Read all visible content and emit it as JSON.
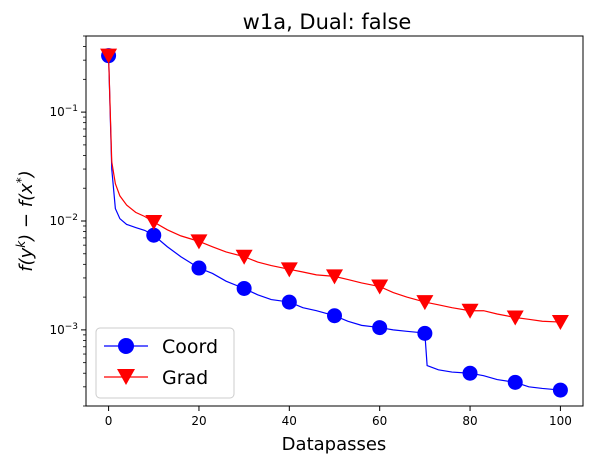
{
  "chart_data": {
    "type": "line",
    "title": "w1a, Dual: false",
    "xlabel": "Datapasses",
    "ylabel": "f(y^k) − f(x^*)",
    "xlim": [
      -5,
      105
    ],
    "ylim": [
      0.0002,
      0.5
    ],
    "yscale": "log",
    "x_ticks": [
      0,
      20,
      40,
      60,
      80,
      100
    ],
    "y_ticks": [
      {
        "value": 0.1,
        "base": "10",
        "exp": "−1"
      },
      {
        "value": 0.01,
        "base": "10",
        "exp": "−2"
      },
      {
        "value": 0.001,
        "base": "10",
        "exp": "−3"
      }
    ],
    "legend_position": "lower-left",
    "series": [
      {
        "name": "Coord",
        "color": "#0000ff",
        "marker": "circle",
        "x": [
          0,
          0.7,
          1.5,
          2.5,
          4,
          6,
          8,
          10,
          13,
          16,
          20,
          23,
          26,
          30,
          33,
          36,
          40,
          43,
          46,
          50,
          53,
          56,
          60,
          63,
          66,
          69.5,
          70,
          70.5,
          73,
          76,
          80,
          83,
          86,
          90,
          93,
          96,
          100
        ],
        "values": [
          0.33,
          0.03,
          0.013,
          0.0105,
          0.0093,
          0.0087,
          0.0082,
          0.0074,
          0.0058,
          0.0047,
          0.0037,
          0.0033,
          0.0028,
          0.0024,
          0.0021,
          0.0019,
          0.0018,
          0.0016,
          0.0015,
          0.00135,
          0.0012,
          0.0011,
          0.00105,
          0.001,
          0.00097,
          0.00094,
          0.00093,
          0.00047,
          0.00043,
          0.00041,
          0.0004,
          0.00038,
          0.00035,
          0.00033,
          0.0003,
          0.00029,
          0.00028
        ],
        "markers_x": [
          0,
          10,
          20,
          30,
          40,
          50,
          60,
          70,
          80,
          90,
          100
        ],
        "markers_y": [
          0.33,
          0.0074,
          0.0037,
          0.0024,
          0.0018,
          0.00135,
          0.00105,
          0.00093,
          0.0004,
          0.00033,
          0.00028
        ]
      },
      {
        "name": "Grad",
        "color": "#ff0000",
        "marker": "triangle-down",
        "x": [
          0,
          0.7,
          1.5,
          2.5,
          4,
          6,
          8,
          10,
          13,
          16,
          20,
          23,
          26,
          30,
          33,
          36,
          40,
          43,
          46,
          50,
          53,
          56,
          60,
          63,
          66,
          70,
          73,
          76,
          80,
          83,
          86,
          90,
          93,
          96,
          100
        ],
        "values": [
          0.33,
          0.035,
          0.022,
          0.017,
          0.014,
          0.012,
          0.011,
          0.0098,
          0.0083,
          0.0073,
          0.0065,
          0.0058,
          0.0052,
          0.0047,
          0.0042,
          0.0039,
          0.0036,
          0.0034,
          0.0032,
          0.0031,
          0.0029,
          0.0027,
          0.0025,
          0.0022,
          0.002,
          0.0018,
          0.0017,
          0.0016,
          0.0015,
          0.0015,
          0.0014,
          0.0013,
          0.00125,
          0.0012,
          0.00118
        ],
        "markers_x": [
          0,
          10,
          20,
          30,
          40,
          50,
          60,
          70,
          80,
          90,
          100
        ],
        "markers_y": [
          0.33,
          0.0098,
          0.0065,
          0.0047,
          0.0036,
          0.0031,
          0.0025,
          0.0018,
          0.0015,
          0.0013,
          0.00118
        ]
      }
    ]
  }
}
